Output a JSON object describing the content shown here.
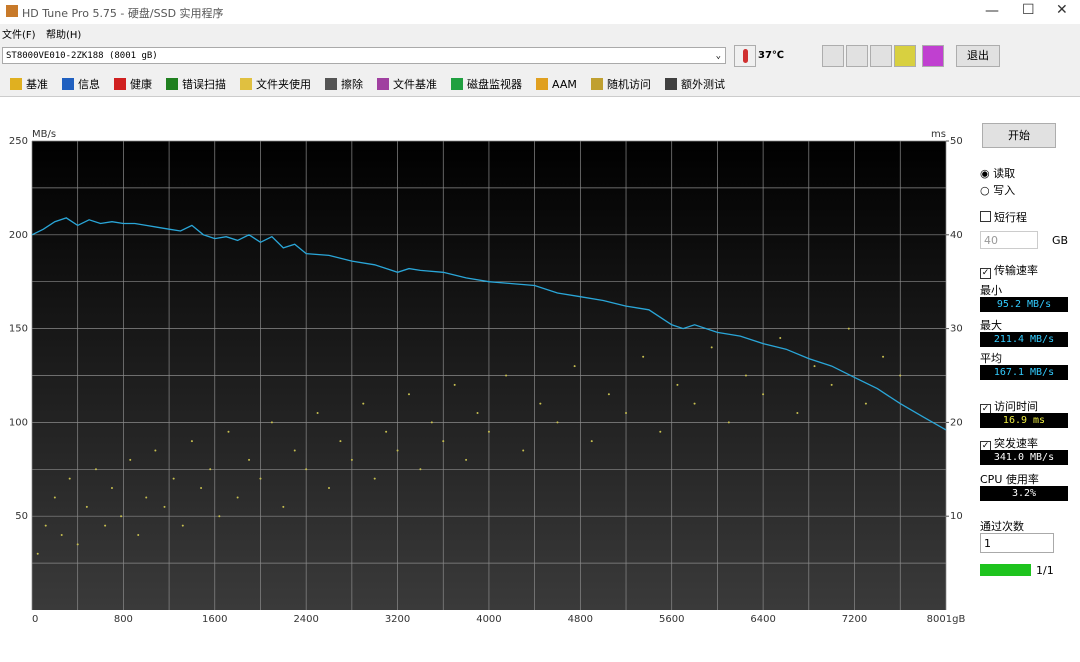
{
  "window": {
    "title": "HD Tune Pro 5.75 - 硬盘/SSD 实用程序"
  },
  "menu": [
    "文件(F)",
    "帮助(H)"
  ],
  "toolbar": {
    "drive": "ST8000VE010-2ZK188 (8001 gB)",
    "temperature": "37℃",
    "exit": "退出"
  },
  "tabs": [
    "基准",
    "信息",
    "健康",
    "错误扫描",
    "文件夹使用",
    "擦除",
    "文件基准",
    "磁盘监视器",
    "AAM",
    "随机访问",
    "额外测试"
  ],
  "panel": {
    "start": "开始",
    "read": "读取",
    "write": "写入",
    "short_stroke": "短行程",
    "short_stroke_size": "40",
    "short_stroke_unit": "GB",
    "transfer_rate": "传输速率",
    "min_label": "最小",
    "min": "95.2 MB/s",
    "max_label": "最大",
    "max": "211.4 MB/s",
    "avg_label": "平均",
    "avg": "167.1 MB/s",
    "access_time_label": "访问时间",
    "access_time": "16.9 ms",
    "burst_label": "突发速率",
    "burst": "341.0 MB/s",
    "cpu_label": "CPU 使用率",
    "cpu": "3.2%",
    "passes_label": "通过次数",
    "passes": "1",
    "progress": "1/1"
  },
  "chart_data": {
    "type": "line",
    "y_unit": "MB/s",
    "y2_unit": "ms",
    "grid": true,
    "xlim": [
      0,
      8001
    ],
    "xticks": [
      0,
      800,
      1600,
      2400,
      3200,
      4000,
      4800,
      5600,
      6400,
      7200,
      {
        "value": 8001,
        "label": "8001gB"
      }
    ],
    "ylim": [
      0,
      250
    ],
    "yticks": [
      50,
      100,
      150,
      200,
      250
    ],
    "y2lim": [
      0,
      50
    ],
    "y2ticks": [
      10,
      20,
      30,
      40,
      50
    ],
    "series": [
      {
        "type": "line",
        "color": "#2aa6d8",
        "x": [
          0,
          100,
          200,
          300,
          400,
          500,
          600,
          700,
          800,
          900,
          1000,
          1100,
          1200,
          1300,
          1400,
          1500,
          1600,
          1700,
          1800,
          1900,
          2000,
          2100,
          2200,
          2300,
          2400,
          2600,
          2800,
          3000,
          3200,
          3300,
          3400,
          3600,
          3800,
          4000,
          4200,
          4400,
          4600,
          4800,
          5000,
          5200,
          5400,
          5600,
          5700,
          5800,
          6000,
          6200,
          6400,
          6600,
          6800,
          7000,
          7200,
          7400,
          7600,
          7800,
          8001
        ],
        "values": [
          200,
          203,
          207,
          209,
          205,
          208,
          206,
          207,
          206,
          206,
          205,
          204,
          203,
          202,
          205,
          200,
          198,
          199,
          197,
          200,
          196,
          199,
          193,
          195,
          190,
          189,
          186,
          184,
          180,
          182,
          181,
          180,
          177,
          175,
          174,
          173,
          169,
          167,
          165,
          162,
          160,
          152,
          150,
          152,
          148,
          146,
          142,
          139,
          134,
          130,
          124,
          118,
          110,
          103,
          96
        ]
      },
      {
        "type": "scatter",
        "axis": "y2",
        "color": "#c8c050",
        "x": [
          50,
          120,
          200,
          260,
          330,
          400,
          480,
          560,
          640,
          700,
          780,
          860,
          930,
          1000,
          1080,
          1160,
          1240,
          1320,
          1400,
          1480,
          1560,
          1640,
          1720,
          1800,
          1900,
          2000,
          2100,
          2200,
          2300,
          2400,
          2500,
          2600,
          2700,
          2800,
          2900,
          3000,
          3100,
          3200,
          3300,
          3400,
          3500,
          3600,
          3700,
          3800,
          3900,
          4000,
          4150,
          4300,
          4450,
          4600,
          4750,
          4900,
          5050,
          5200,
          5350,
          5500,
          5650,
          5800,
          5950,
          6100,
          6250,
          6400,
          6550,
          6700,
          6850,
          7000,
          7150,
          7300,
          7450,
          7600
        ],
        "values": [
          6,
          9,
          12,
          8,
          14,
          7,
          11,
          15,
          9,
          13,
          10,
          16,
          8,
          12,
          17,
          11,
          14,
          9,
          18,
          13,
          15,
          10,
          19,
          12,
          16,
          14,
          20,
          11,
          17,
          15,
          21,
          13,
          18,
          16,
          22,
          14,
          19,
          17,
          23,
          15,
          20,
          18,
          24,
          16,
          21,
          19,
          25,
          17,
          22,
          20,
          26,
          18,
          23,
          21,
          27,
          19,
          24,
          22,
          28,
          20,
          25,
          23,
          29,
          21,
          26,
          24,
          30,
          22,
          27,
          25
        ]
      }
    ]
  }
}
